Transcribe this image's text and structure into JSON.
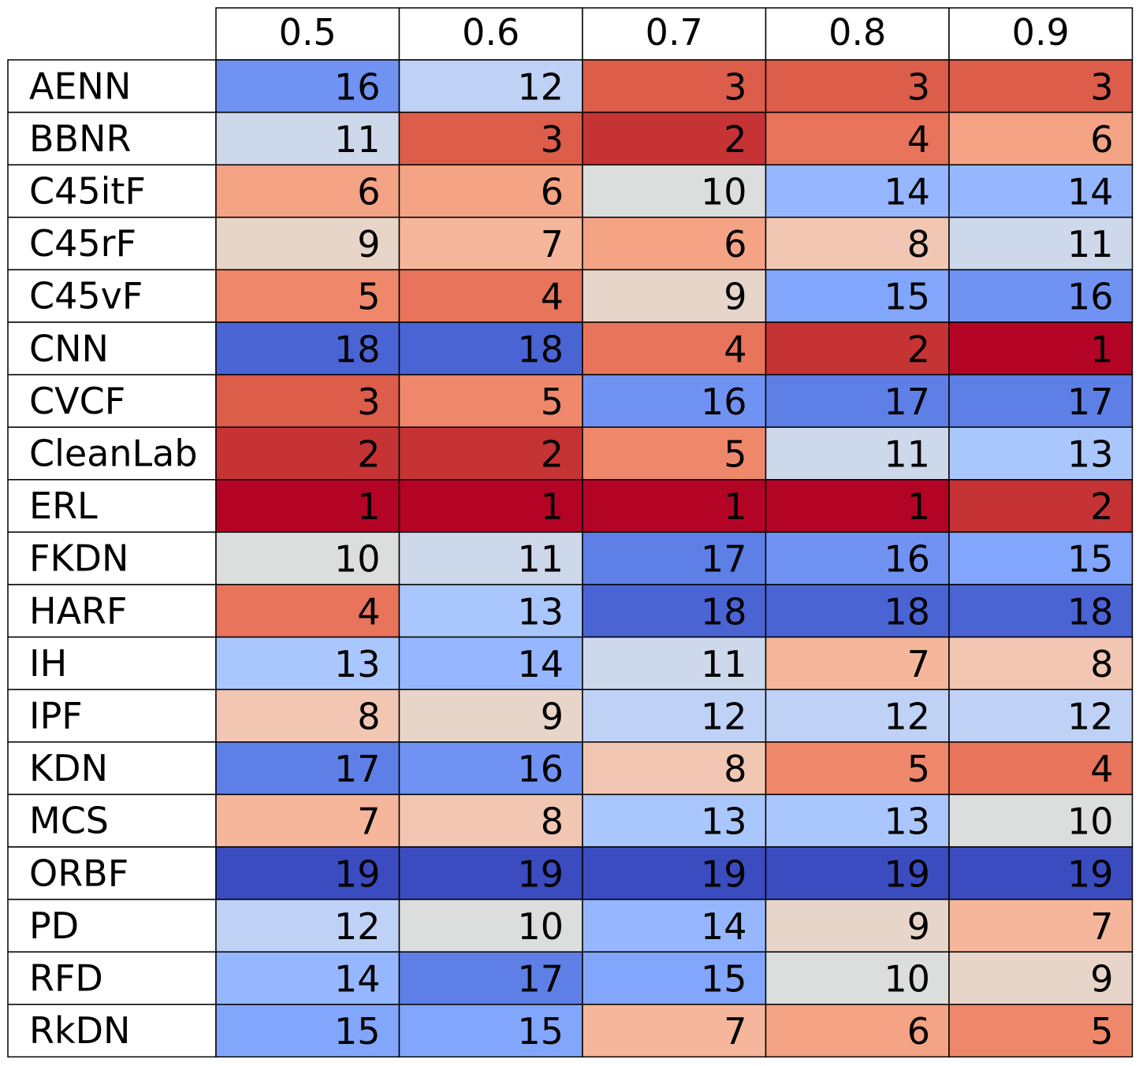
{
  "chart_data": {
    "type": "heatmap",
    "columns": [
      "0.5",
      "0.6",
      "0.7",
      "0.8",
      "0.9"
    ],
    "rows": [
      {
        "label": "AENN",
        "values": [
          16,
          12,
          3,
          3,
          3
        ]
      },
      {
        "label": "BBNR",
        "values": [
          11,
          3,
          2,
          4,
          6
        ]
      },
      {
        "label": "C45itF",
        "values": [
          6,
          6,
          10,
          14,
          14
        ]
      },
      {
        "label": "C45rF",
        "values": [
          9,
          7,
          6,
          8,
          11
        ]
      },
      {
        "label": "C45vF",
        "values": [
          5,
          4,
          9,
          15,
          16
        ]
      },
      {
        "label": "CNN",
        "values": [
          18,
          18,
          4,
          2,
          1
        ]
      },
      {
        "label": "CVCF",
        "values": [
          3,
          5,
          16,
          17,
          17
        ]
      },
      {
        "label": "CleanLab",
        "values": [
          2,
          2,
          5,
          11,
          13
        ]
      },
      {
        "label": "ERL",
        "values": [
          1,
          1,
          1,
          1,
          2
        ]
      },
      {
        "label": "FKDN",
        "values": [
          10,
          11,
          17,
          16,
          15
        ]
      },
      {
        "label": "HARF",
        "values": [
          4,
          13,
          18,
          18,
          18
        ]
      },
      {
        "label": "IH",
        "values": [
          13,
          14,
          11,
          7,
          8
        ]
      },
      {
        "label": "IPF",
        "values": [
          8,
          9,
          12,
          12,
          12
        ]
      },
      {
        "label": "KDN",
        "values": [
          17,
          16,
          8,
          5,
          4
        ]
      },
      {
        "label": "MCS",
        "values": [
          7,
          8,
          13,
          13,
          10
        ]
      },
      {
        "label": "ORBF",
        "values": [
          19,
          19,
          19,
          19,
          19
        ]
      },
      {
        "label": "PD",
        "values": [
          12,
          10,
          14,
          9,
          7
        ]
      },
      {
        "label": "RFD",
        "values": [
          14,
          17,
          15,
          10,
          9
        ]
      },
      {
        "label": "RkDN",
        "values": [
          15,
          15,
          7,
          6,
          5
        ]
      }
    ],
    "value_range": [
      1,
      19
    ],
    "colormap": "coolwarm-reversed",
    "colors": {
      "1": "#b40426",
      "2": "#c53334",
      "3": "#dc5d4a",
      "4": "#e7745b",
      "5": "#ef886b",
      "6": "#f4a384",
      "7": "#f6b69b",
      "8": "#f1c7b3",
      "9": "#e8d5c9",
      "10": "#dcdddd",
      "11": "#cdd8ea",
      "12": "#bfd2f6",
      "13": "#aac7fd",
      "14": "#96b7ff",
      "15": "#82a6fb",
      "16": "#7093f3",
      "17": "#5e7fe6",
      "18": "#4a64d4",
      "19": "#3b4cc0"
    }
  }
}
